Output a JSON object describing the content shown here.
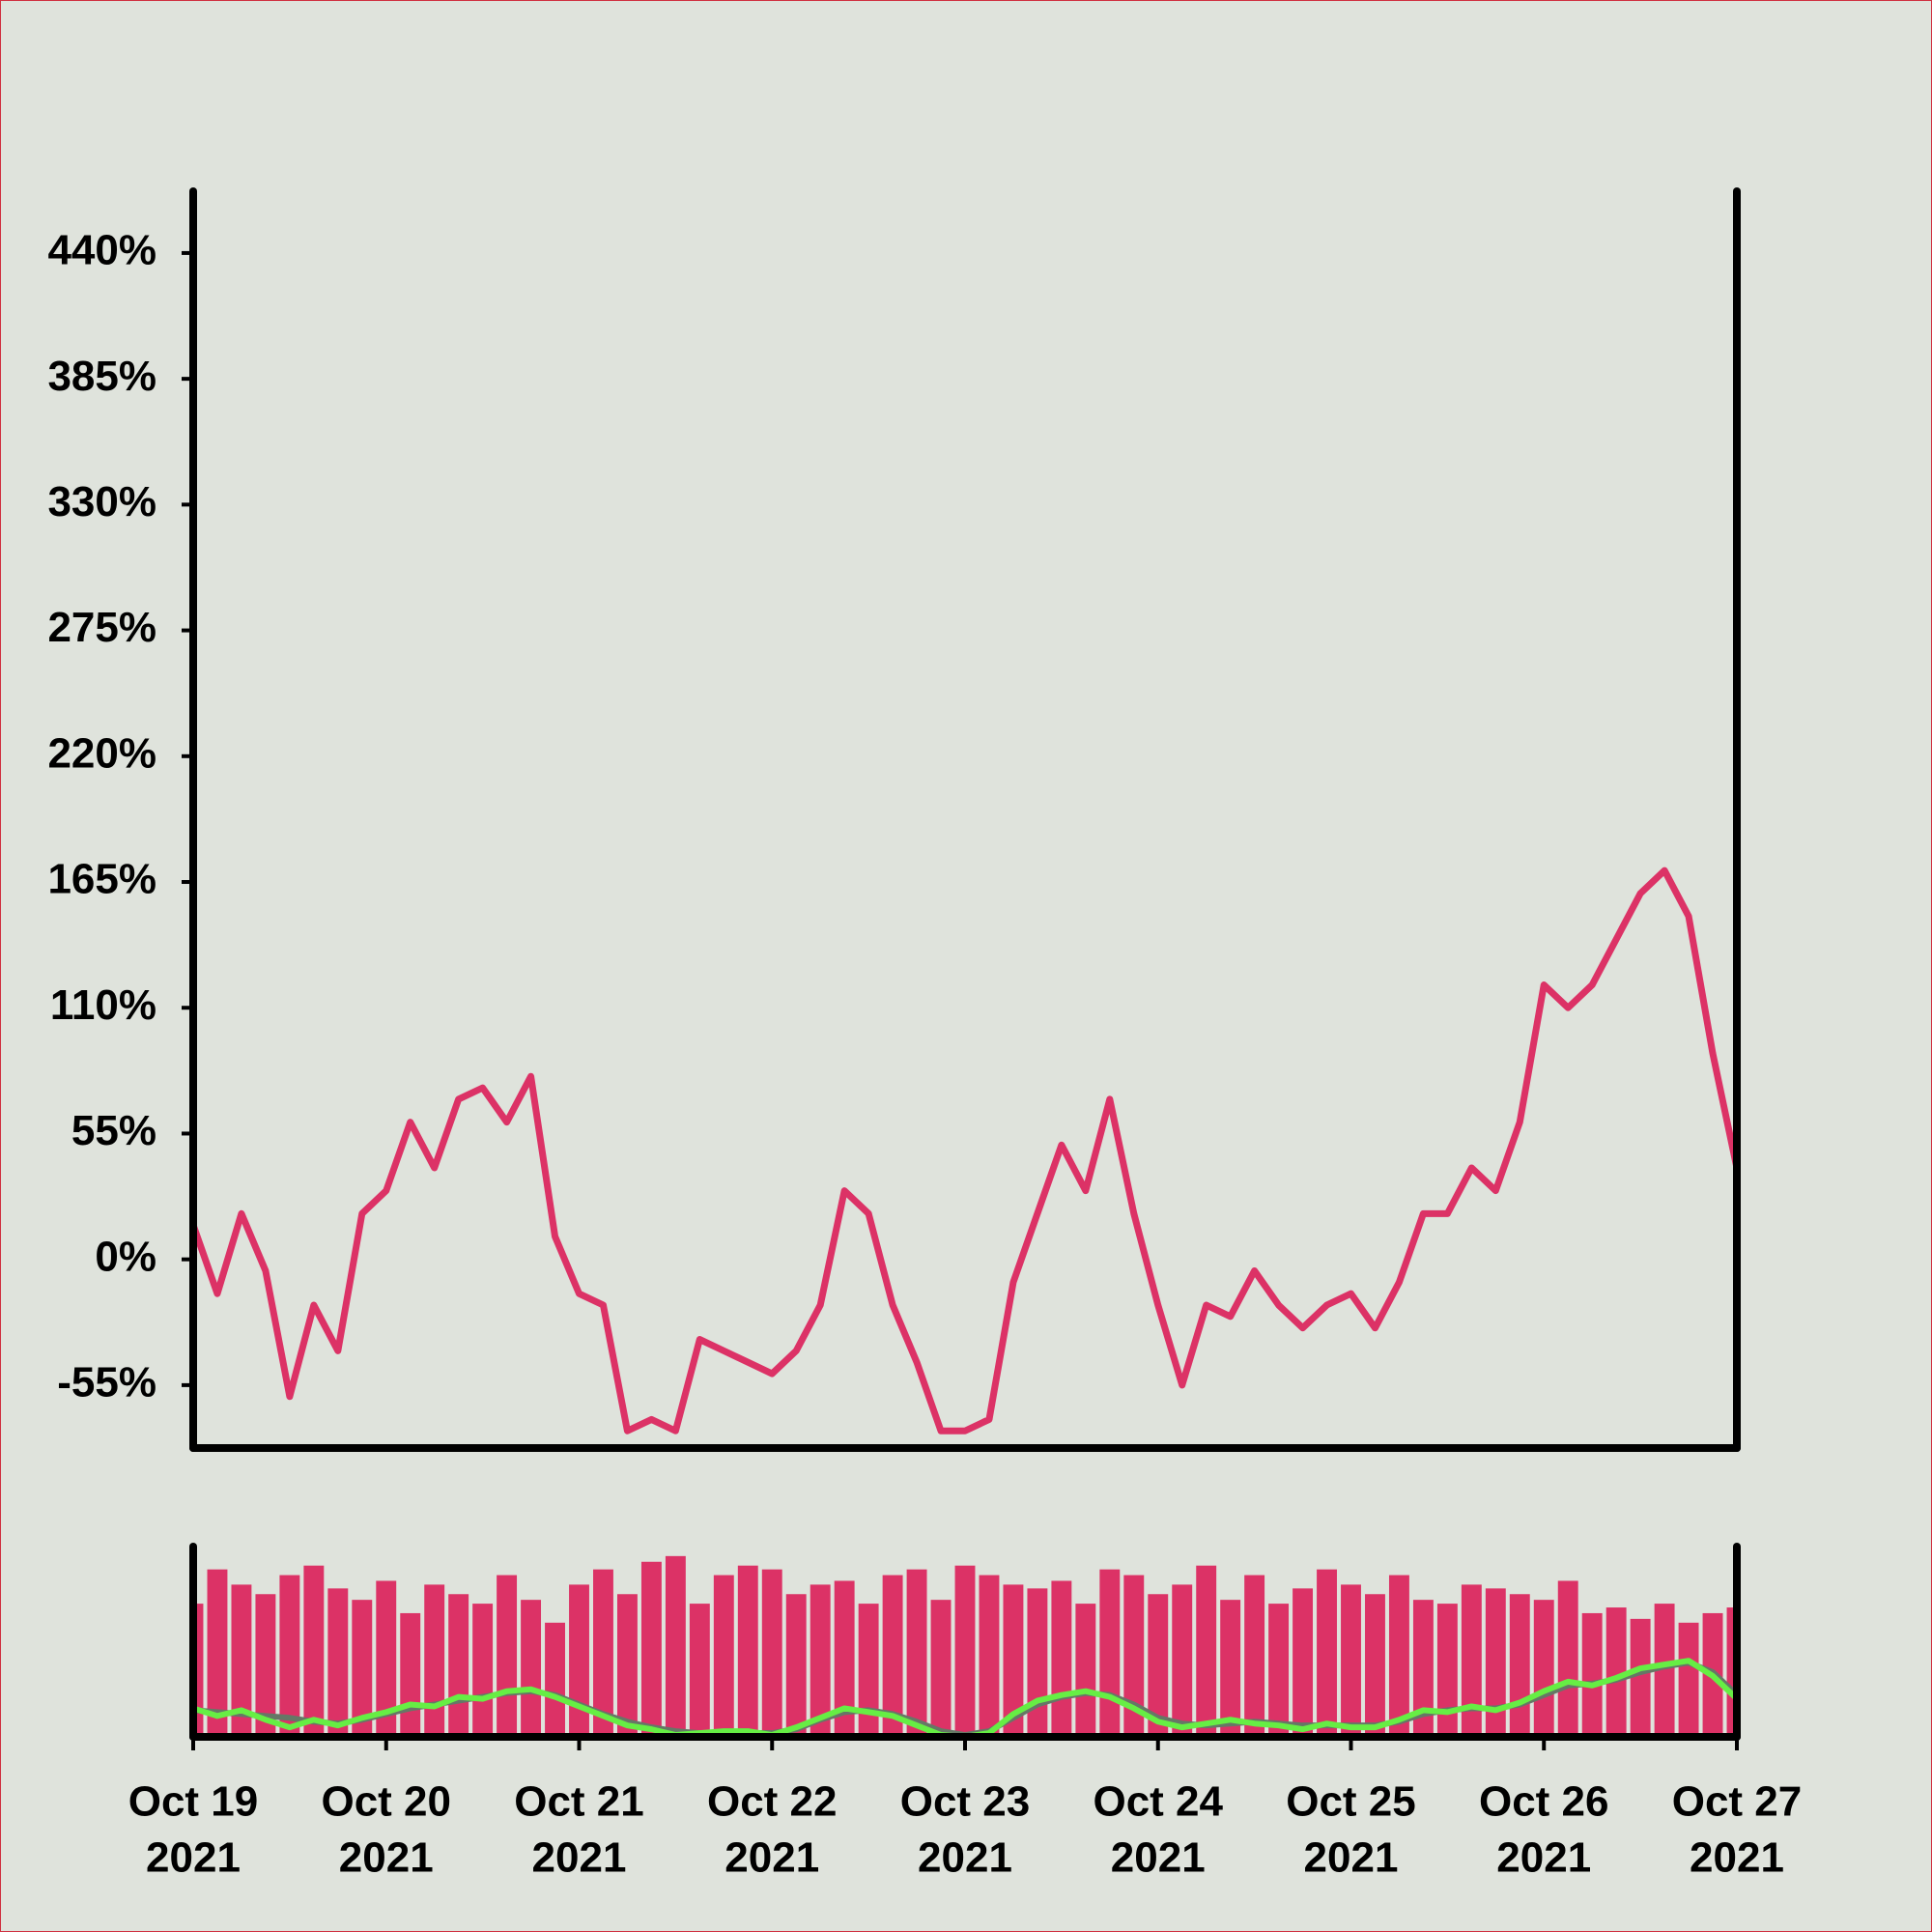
{
  "chart_data": [
    {
      "type": "line",
      "x": [
        0,
        0.125,
        0.25,
        0.375,
        0.5,
        0.625,
        0.75,
        0.875,
        1,
        1.125,
        1.25,
        1.375,
        1.5,
        1.625,
        1.75,
        1.875,
        2,
        2.125,
        2.25,
        2.375,
        2.5,
        2.625,
        2.75,
        2.875,
        3,
        3.125,
        3.25,
        3.375,
        3.5,
        3.625,
        3.75,
        3.875,
        4,
        4.125,
        4.25,
        4.375,
        4.5,
        4.625,
        4.75,
        4.875,
        5,
        5.125,
        5.25,
        5.375,
        5.5,
        5.625,
        5.75,
        5.875,
        6,
        6.125,
        6.25,
        6.375,
        6.5,
        6.625,
        6.75,
        6.875,
        7,
        7.125,
        7.25,
        7.375,
        7.5,
        7.625,
        7.75,
        7.875,
        8
      ],
      "values": [
        15,
        -15,
        20,
        -5,
        -60,
        -20,
        -40,
        20,
        30,
        60,
        40,
        70,
        75,
        60,
        80,
        10,
        -15,
        -20,
        -75,
        -70,
        -75,
        -35,
        -40,
        -45,
        -50,
        -40,
        -20,
        30,
        20,
        -20,
        -45,
        -75,
        -75,
        -70,
        -10,
        20,
        50,
        30,
        70,
        20,
        -20,
        -55,
        -20,
        -25,
        -5,
        -20,
        -30,
        -20,
        -15,
        -30,
        -10,
        20,
        20,
        40,
        30,
        60,
        120,
        110,
        120,
        140,
        160,
        170,
        150,
        90,
        40
      ],
      "color": "#dc3266",
      "xlim": [
        0,
        8
      ],
      "xticks": [
        {
          "value": 0,
          "label": [
            "Oct 19",
            "2021"
          ]
        },
        {
          "value": 1,
          "label": [
            "Oct 20",
            "2021"
          ]
        },
        {
          "value": 2,
          "label": [
            "Oct 21",
            "2021"
          ]
        },
        {
          "value": 3,
          "label": [
            "Oct 22",
            "2021"
          ]
        },
        {
          "value": 4,
          "label": [
            "Oct 23",
            "2021"
          ]
        },
        {
          "value": 5,
          "label": [
            "Oct 24",
            "2021"
          ]
        },
        {
          "value": 6,
          "label": [
            "Oct 25",
            "2021"
          ]
        },
        {
          "value": 7,
          "label": [
            "Oct 26",
            "2021"
          ]
        },
        {
          "value": 8,
          "label": [
            "Oct 27",
            "2021"
          ]
        }
      ],
      "ylim": [
        -82.5,
        467
      ],
      "yticks": [
        {
          "value": -55,
          "label": "-55%"
        },
        {
          "value": 0,
          "label": "0%"
        },
        {
          "value": 55,
          "label": "55%"
        },
        {
          "value": 110,
          "label": "110%"
        },
        {
          "value": 165,
          "label": "165%"
        },
        {
          "value": 220,
          "label": "220%"
        },
        {
          "value": 275,
          "label": "275%"
        },
        {
          "value": 330,
          "label": "330%"
        },
        {
          "value": 385,
          "label": "385%"
        },
        {
          "value": 440,
          "label": "440%"
        }
      ]
    },
    {
      "type": "bar",
      "x": [
        0,
        0.125,
        0.25,
        0.375,
        0.5,
        0.625,
        0.75,
        0.875,
        1,
        1.125,
        1.25,
        1.375,
        1.5,
        1.625,
        1.75,
        1.875,
        2,
        2.125,
        2.25,
        2.375,
        2.5,
        2.625,
        2.75,
        2.875,
        3,
        3.125,
        3.25,
        3.375,
        3.5,
        3.625,
        3.75,
        3.875,
        4,
        4.125,
        4.25,
        4.375,
        4.5,
        4.625,
        4.75,
        4.875,
        5,
        5.125,
        5.25,
        5.375,
        5.5,
        5.625,
        5.75,
        5.875,
        6,
        6.125,
        6.25,
        6.375,
        6.5,
        6.625,
        6.75,
        6.875,
        7,
        7.125,
        7.25,
        7.375,
        7.5,
        7.625,
        7.75,
        7.875,
        8
      ],
      "values": [
        70,
        88,
        80,
        75,
        85,
        90,
        78,
        72,
        82,
        65,
        80,
        75,
        70,
        85,
        72,
        60,
        80,
        88,
        75,
        92,
        95,
        70,
        85,
        90,
        88,
        75,
        80,
        82,
        70,
        85,
        88,
        72,
        90,
        85,
        80,
        78,
        82,
        70,
        88,
        85,
        75,
        80,
        90,
        72,
        85,
        70,
        78,
        88,
        80,
        75,
        85,
        72,
        70,
        80,
        78,
        75,
        72,
        82,
        65,
        68,
        62,
        70,
        60,
        65,
        68
      ],
      "color": "#dc3266",
      "xlim": [
        0,
        8
      ],
      "ylim": [
        0,
        100
      ],
      "series": [
        {
          "color": "#667766",
          "values": [
            14,
            13,
            12,
            11,
            10,
            8,
            7,
            9,
            12,
            15,
            17,
            19,
            21,
            23,
            24,
            22,
            17,
            12,
            8,
            5,
            3,
            2,
            2,
            2,
            2,
            4,
            9,
            13,
            14,
            12,
            8,
            3,
            1,
            3,
            10,
            17,
            21,
            23,
            22,
            17,
            10,
            7,
            6,
            7,
            8,
            7,
            6,
            6,
            6,
            6,
            8,
            12,
            14,
            15,
            15,
            17,
            22,
            27,
            28,
            30,
            34,
            37,
            39,
            34,
            22
          ]
        },
        {
          "color": "#66ee44",
          "values": [
            15,
            11,
            14,
            9,
            5,
            9,
            6,
            10,
            13,
            17,
            16,
            21,
            20,
            24,
            25,
            21,
            16,
            11,
            6,
            4,
            1,
            2,
            3,
            3,
            1,
            5,
            10,
            15,
            13,
            11,
            6,
            1,
            0,
            2,
            12,
            19,
            22,
            24,
            21,
            15,
            8,
            5,
            7,
            9,
            7,
            6,
            4,
            7,
            5,
            5,
            9,
            14,
            13,
            16,
            14,
            18,
            24,
            29,
            27,
            31,
            36,
            38,
            40,
            32,
            20
          ]
        }
      ]
    }
  ]
}
